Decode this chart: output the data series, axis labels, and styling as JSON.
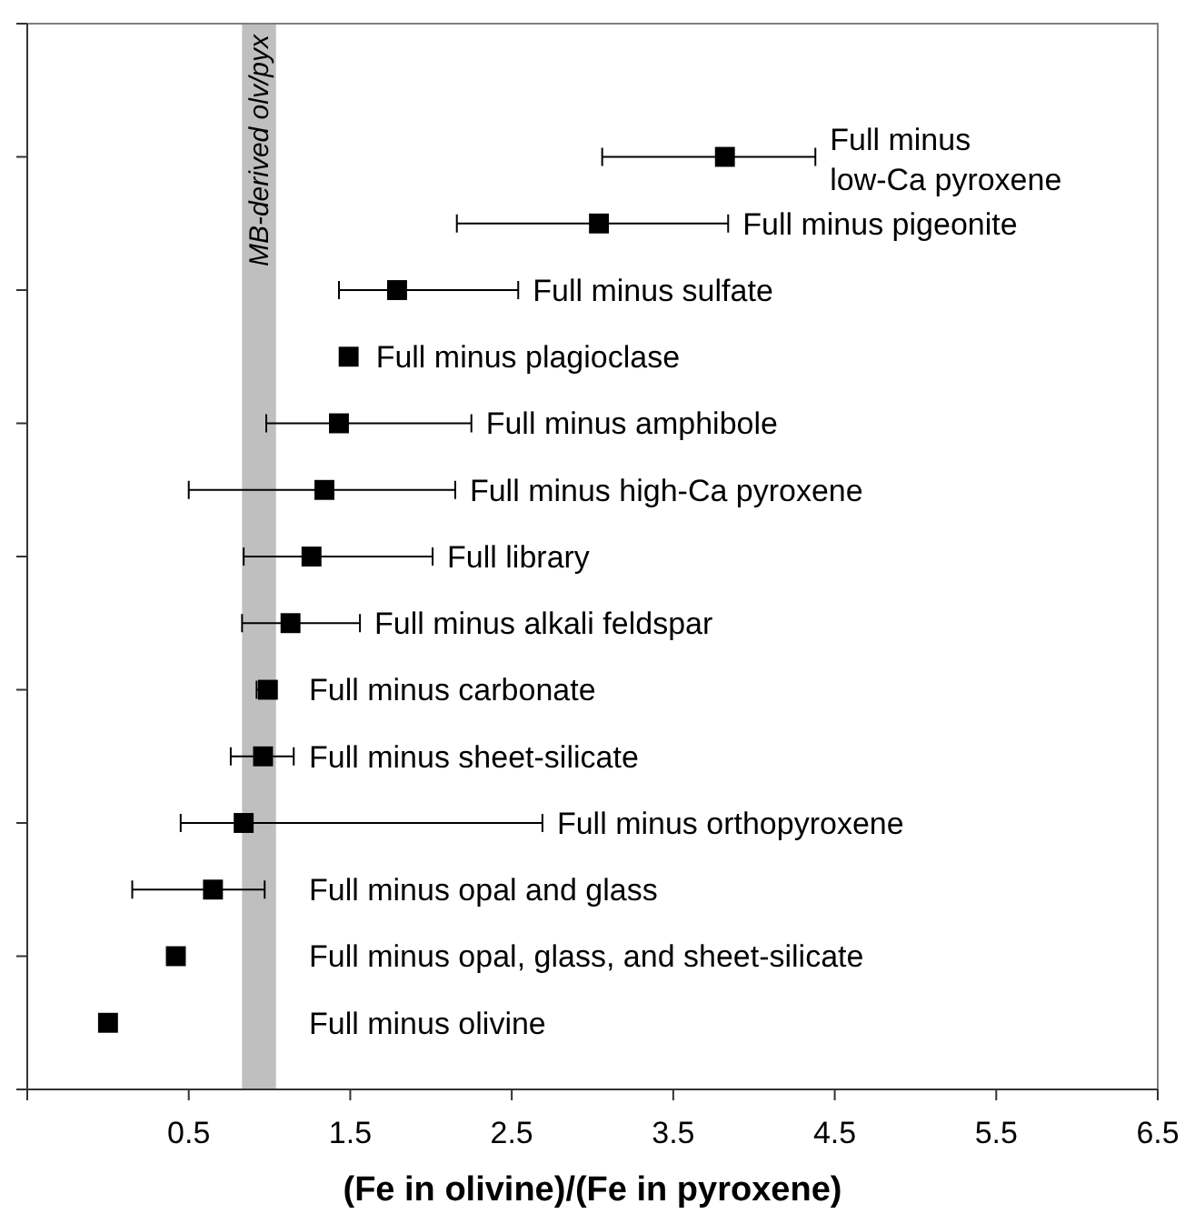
{
  "chart_data": {
    "type": "scatter",
    "orientation": "horizontal",
    "marker": "square",
    "color": "#000000",
    "tick_labels": "x",
    "xlabel": "(Fe in olivine)/(Fe in pyroxene)",
    "categories": [
      "Full minus low-Ca pyroxene",
      "Full minus pigeonite",
      "Full minus sulfate",
      "Full minus plagioclase",
      "Full minus amphibole",
      "Full minus high-Ca pyroxene",
      "Full library",
      "Full minus alkali feldspar",
      "Full minus carbonate",
      "Full minus sheet-silicate",
      "Full minus orthopyroxene",
      "Full minus opal and glass",
      "Full minus opal, glass, and sheet-silicate",
      "Full minus olivine"
    ],
    "values": [
      3.82,
      3.04,
      1.79,
      1.49,
      1.43,
      1.34,
      1.26,
      1.13,
      0.99,
      0.96,
      0.84,
      0.65,
      0.42,
      0.0
    ],
    "errors": [
      [
        3.06,
        4.38
      ],
      [
        2.16,
        3.84
      ],
      [
        1.43,
        2.54
      ],
      null,
      [
        0.98,
        2.25
      ],
      [
        0.5,
        2.15
      ],
      [
        0.84,
        2.01
      ],
      [
        0.83,
        1.56
      ],
      [
        0.92,
        1.0
      ],
      [
        0.76,
        1.15
      ],
      [
        0.45,
        2.69
      ],
      [
        0.15,
        0.97
      ],
      null,
      null
    ],
    "xlim": [
      -0.5,
      6.5
    ],
    "xticks": [
      {
        "value": -0.5,
        "label": null
      },
      0.5,
      1.5,
      2.5,
      3.5,
      4.5,
      5.5,
      6.5
    ],
    "bands": [
      {
        "axis": "x",
        "from": 0.83,
        "to": 1.04,
        "label": "MB-derived olv/pyx",
        "color": "#bfbfbf"
      }
    ]
  }
}
